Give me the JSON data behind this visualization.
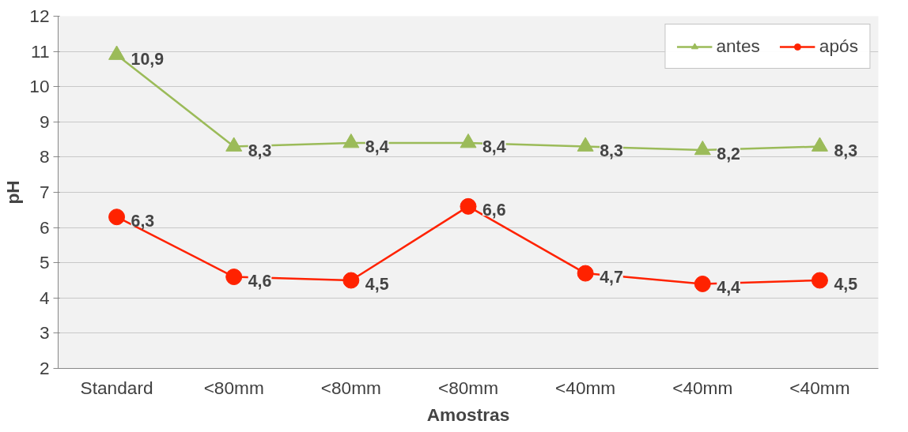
{
  "chart_data": {
    "type": "line",
    "xlabel": "Amostras",
    "ylabel": "pH",
    "categories": [
      "Standard",
      "<80mm",
      "<80mm",
      "<80mm",
      "<40mm",
      "<40mm",
      "<40mm"
    ],
    "series": [
      {
        "name": "antes",
        "color": "#9bbb59",
        "marker": "triangle",
        "values": [
          10.9,
          8.3,
          8.4,
          8.4,
          8.3,
          8.2,
          8.3
        ],
        "value_labels": [
          "10,9",
          "8,3",
          "8,4",
          "8,4",
          "8,3",
          "8,2",
          "8,3"
        ]
      },
      {
        "name": "após",
        "color": "#ff2200",
        "marker": "circle",
        "values": [
          6.3,
          4.6,
          4.5,
          6.6,
          4.7,
          4.4,
          4.5
        ],
        "value_labels": [
          "6,3",
          "4,6",
          "4,5",
          "6,6",
          "4,7",
          "4,4",
          "4,5"
        ]
      }
    ],
    "ylim": [
      2,
      12
    ],
    "yticks": [
      2,
      3,
      4,
      5,
      6,
      7,
      8,
      9,
      10,
      11,
      12
    ],
    "grid": "y",
    "legend": "top right"
  }
}
